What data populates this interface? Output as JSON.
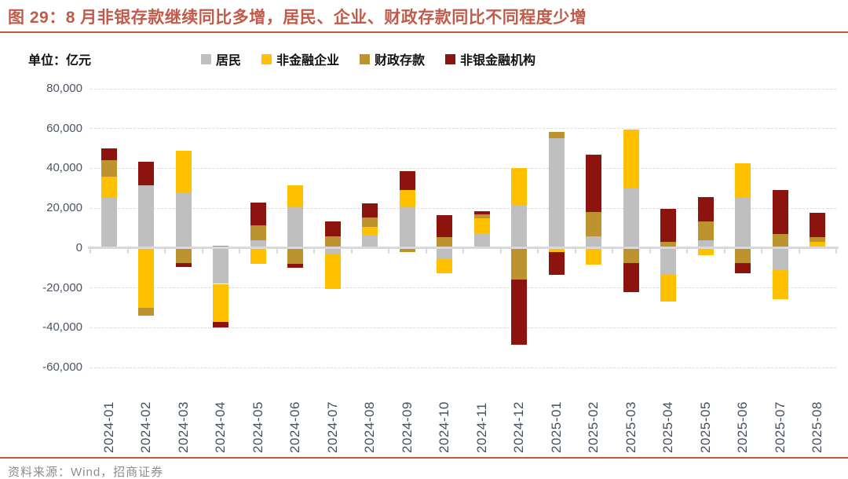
{
  "title": "图 29：8 月非银存款继续同比多增，居民、企业、财政存款同比不同程度少增",
  "unit_label": "单位：亿元",
  "source": "资料来源：Wind，招商证券",
  "colors": {
    "title": "#C05B4A",
    "rule": "#C35A3B",
    "axis_labels": "#4A5568",
    "gridline": "#DADADA",
    "source_text": "#8C8C8C"
  },
  "chart_data": {
    "type": "bar",
    "stacked": true,
    "unit": "亿元",
    "categories": [
      "2024-01",
      "2024-02",
      "2024-03",
      "2024-04",
      "2024-05",
      "2024-06",
      "2024-07",
      "2024-08",
      "2024-09",
      "2024-10",
      "2024-11",
      "2024-12",
      "2025-01",
      "2025-02",
      "2025-03",
      "2025-04",
      "2025-05",
      "2025-06",
      "2025-07",
      "2025-08"
    ],
    "series": [
      {
        "name": "居民",
        "color": "#BFBFBF",
        "values": [
          25000,
          31500,
          27500,
          -18000,
          4000,
          21000,
          -3000,
          6500,
          21000,
          -5500,
          7500,
          21500,
          55000,
          6000,
          30500,
          -13500,
          4000,
          25000,
          -11000,
          0
        ]
      },
      {
        "name": "非金融企业",
        "color": "#FFC000",
        "values": [
          11000,
          -30000,
          21500,
          -19000,
          -8000,
          10500,
          -17500,
          4000,
          8000,
          -7000,
          7500,
          18500,
          -2000,
          -8500,
          29000,
          -13500,
          -3500,
          17500,
          -14500,
          3000
        ]
      },
      {
        "name": "财政存款",
        "color": "#BD9330",
        "values": [
          8000,
          -4000,
          -7500,
          1000,
          7500,
          -8000,
          6000,
          5000,
          -2000,
          5500,
          1800,
          -16000,
          3500,
          12000,
          -7500,
          3000,
          9500,
          -7500,
          7000,
          2500
        ]
      },
      {
        "name": "非银金融机构",
        "color": "#8D130E",
        "values": [
          6000,
          12000,
          -2000,
          -3000,
          11500,
          -2000,
          7500,
          7000,
          9500,
          11000,
          1700,
          -32500,
          -11500,
          29000,
          -14500,
          16500,
          12000,
          -5000,
          22000,
          12000
        ]
      }
    ],
    "ylim": [
      -60000,
      80000
    ],
    "ytick_interval": 20000,
    "ytick_labels": [
      "80,000",
      "60,000",
      "40,000",
      "20,000",
      "0",
      "-20,000",
      "-40,000",
      "-60,000"
    ],
    "legend_position": "top",
    "grid": "horizontal-dashed"
  }
}
